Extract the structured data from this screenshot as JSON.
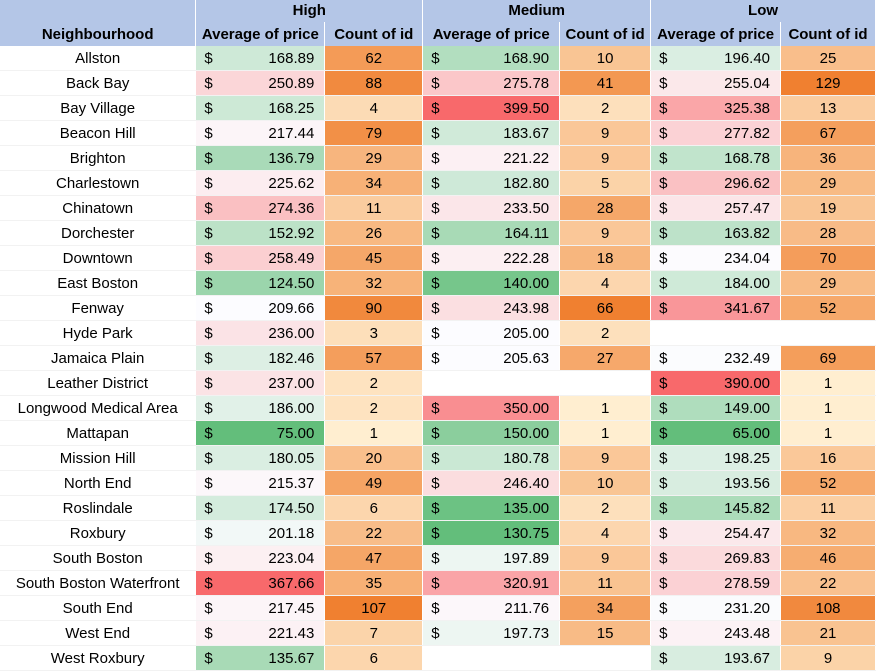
{
  "header": {
    "neighbourhood_label": "Neighbourhood",
    "groups": [
      "High",
      "Medium",
      "Low"
    ],
    "avg_label": "Average of price",
    "count_label": "Count of id"
  },
  "currency_symbol": "$",
  "rows": [
    {
      "name": "Allston",
      "cells": [
        [
          "168.89",
          "62"
        ],
        [
          "168.90",
          "10"
        ],
        [
          "196.40",
          "25"
        ]
      ]
    },
    {
      "name": "Back Bay",
      "cells": [
        [
          "250.89",
          "88"
        ],
        [
          "275.78",
          "41"
        ],
        [
          "255.04",
          "129"
        ]
      ]
    },
    {
      "name": "Bay Village",
      "cells": [
        [
          "168.25",
          "4"
        ],
        [
          "399.50",
          "2"
        ],
        [
          "325.38",
          "13"
        ]
      ]
    },
    {
      "name": "Beacon Hill",
      "cells": [
        [
          "217.44",
          "79"
        ],
        [
          "183.67",
          "9"
        ],
        [
          "277.82",
          "67"
        ]
      ]
    },
    {
      "name": "Brighton",
      "cells": [
        [
          "136.79",
          "29"
        ],
        [
          "221.22",
          "9"
        ],
        [
          "168.78",
          "36"
        ]
      ]
    },
    {
      "name": "Charlestown",
      "cells": [
        [
          "225.62",
          "34"
        ],
        [
          "182.80",
          "5"
        ],
        [
          "296.62",
          "29"
        ]
      ]
    },
    {
      "name": "Chinatown",
      "cells": [
        [
          "274.36",
          "11"
        ],
        [
          "233.50",
          "28"
        ],
        [
          "257.47",
          "19"
        ]
      ]
    },
    {
      "name": "Dorchester",
      "cells": [
        [
          "152.92",
          "26"
        ],
        [
          "164.11",
          "9"
        ],
        [
          "163.82",
          "28"
        ]
      ]
    },
    {
      "name": "Downtown",
      "cells": [
        [
          "258.49",
          "45"
        ],
        [
          "222.28",
          "18"
        ],
        [
          "234.04",
          "70"
        ]
      ]
    },
    {
      "name": "East Boston",
      "cells": [
        [
          "124.50",
          "32"
        ],
        [
          "140.00",
          "4"
        ],
        [
          "184.00",
          "29"
        ]
      ]
    },
    {
      "name": "Fenway",
      "cells": [
        [
          "209.66",
          "90"
        ],
        [
          "243.98",
          "66"
        ],
        [
          "341.67",
          "52"
        ]
      ]
    },
    {
      "name": "Hyde Park",
      "cells": [
        [
          "236.00",
          "3"
        ],
        [
          "205.00",
          "2"
        ],
        [
          "",
          ""
        ]
      ]
    },
    {
      "name": "Jamaica Plain",
      "cells": [
        [
          "182.46",
          "57"
        ],
        [
          "205.63",
          "27"
        ],
        [
          "232.49",
          "69"
        ]
      ]
    },
    {
      "name": "Leather District",
      "cells": [
        [
          "237.00",
          "2"
        ],
        [
          "",
          ""
        ],
        [
          "390.00",
          "1"
        ]
      ]
    },
    {
      "name": "Longwood Medical Area",
      "cells": [
        [
          "186.00",
          "2"
        ],
        [
          "350.00",
          "1"
        ],
        [
          "149.00",
          "1"
        ]
      ]
    },
    {
      "name": "Mattapan",
      "cells": [
        [
          "75.00",
          "1"
        ],
        [
          "150.00",
          "1"
        ],
        [
          "65.00",
          "1"
        ]
      ]
    },
    {
      "name": "Mission Hill",
      "cells": [
        [
          "180.05",
          "20"
        ],
        [
          "180.78",
          "9"
        ],
        [
          "198.25",
          "16"
        ]
      ]
    },
    {
      "name": "North End",
      "cells": [
        [
          "215.37",
          "49"
        ],
        [
          "246.40",
          "10"
        ],
        [
          "193.56",
          "52"
        ]
      ]
    },
    {
      "name": "Roslindale",
      "cells": [
        [
          "174.50",
          "6"
        ],
        [
          "135.00",
          "2"
        ],
        [
          "145.82",
          "11"
        ]
      ]
    },
    {
      "name": "Roxbury",
      "cells": [
        [
          "201.18",
          "22"
        ],
        [
          "130.75",
          "4"
        ],
        [
          "254.47",
          "32"
        ]
      ]
    },
    {
      "name": "South Boston",
      "cells": [
        [
          "223.04",
          "47"
        ],
        [
          "197.89",
          "9"
        ],
        [
          "269.83",
          "46"
        ]
      ]
    },
    {
      "name": "South Boston Waterfront",
      "cells": [
        [
          "367.66",
          "35"
        ],
        [
          "320.91",
          "11"
        ],
        [
          "278.59",
          "22"
        ]
      ]
    },
    {
      "name": "South End",
      "cells": [
        [
          "217.45",
          "107"
        ],
        [
          "211.76",
          "34"
        ],
        [
          "231.20",
          "108"
        ]
      ]
    },
    {
      "name": "West End",
      "cells": [
        [
          "221.43",
          "7"
        ],
        [
          "197.73",
          "15"
        ],
        [
          "243.48",
          "21"
        ]
      ]
    },
    {
      "name": "West Roxbury",
      "cells": [
        [
          "135.67",
          "6"
        ],
        [
          "",
          ""
        ],
        [
          "193.67",
          "9"
        ]
      ]
    }
  ],
  "colors": {
    "header_bg": "#b4c6e7",
    "price_low": "#63be7b",
    "price_mid": "#fcfcff",
    "price_high": "#f8696b",
    "count_low": "#ffeed0",
    "count_high": "#f08030"
  }
}
